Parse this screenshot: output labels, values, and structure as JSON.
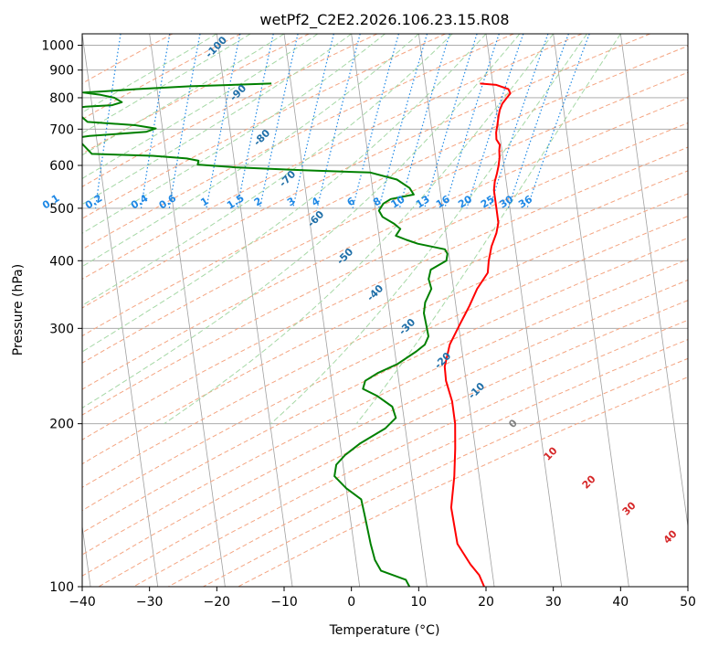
{
  "chart_data": {
    "type": "line",
    "title": "wetPf2_C2E2.2026.106.23.15.R08",
    "xlabel": "Temperature (°C)",
    "ylabel": "Pressure (hPa)",
    "xlim": [
      -40,
      50
    ],
    "ylim": [
      1050,
      100
    ],
    "y_scale": "log",
    "grid": true,
    "x_ticks": [
      -40,
      -30,
      -20,
      -10,
      0,
      10,
      20,
      30,
      40,
      50
    ],
    "x_tick_labels": [
      "−40",
      "−30",
      "−20",
      "−10",
      "0",
      "10",
      "20",
      "30",
      "40",
      "50"
    ],
    "y_ticks": [
      1000,
      900,
      800,
      700,
      600,
      500,
      400,
      300,
      200,
      100
    ],
    "y_tick_labels": [
      "1000",
      "900",
      "800",
      "700",
      "600",
      "500",
      "400",
      "300",
      "200",
      "100"
    ],
    "series": [
      {
        "role": "temperature",
        "color": "#ff0000",
        "points": [
          [
            18.1,
            850
          ],
          [
            20.5,
            845
          ],
          [
            22.2,
            830
          ],
          [
            22.4,
            815
          ],
          [
            21.8,
            800
          ],
          [
            21.0,
            780
          ],
          [
            20.5,
            760
          ],
          [
            20.2,
            740
          ],
          [
            19.8,
            710
          ],
          [
            19.5,
            690
          ],
          [
            19.4,
            670
          ],
          [
            19.8,
            655
          ],
          [
            19.6,
            640
          ],
          [
            19.5,
            620
          ],
          [
            19.2,
            600
          ],
          [
            18.8,
            580
          ],
          [
            18.3,
            560
          ],
          [
            18.0,
            540
          ],
          [
            18.0,
            520
          ],
          [
            18.0,
            500
          ],
          [
            18.0,
            470
          ],
          [
            17.5,
            450
          ],
          [
            16.5,
            425
          ],
          [
            15.8,
            400
          ],
          [
            15.4,
            380
          ],
          [
            13.5,
            355
          ],
          [
            12.0,
            330
          ],
          [
            10.2,
            305
          ],
          [
            8.3,
            280
          ],
          [
            7.1,
            255
          ],
          [
            7.0,
            240
          ],
          [
            7.5,
            220
          ],
          [
            7.5,
            200
          ],
          [
            7.0,
            180
          ],
          [
            6.3,
            160
          ],
          [
            5.2,
            140
          ],
          [
            5.4,
            120
          ],
          [
            6.9,
            110
          ],
          [
            8.0,
            105
          ],
          [
            8.5,
            100
          ]
        ]
      },
      {
        "role": "dewpoint",
        "color": "#008000",
        "points": [
          [
            -12.9,
            850
          ],
          [
            -25.0,
            840
          ],
          [
            -33.0,
            830
          ],
          [
            -38.0,
            822
          ],
          [
            -41.0,
            818
          ],
          [
            -38.5,
            810
          ],
          [
            -36.5,
            800
          ],
          [
            -35.5,
            785
          ],
          [
            -37.0,
            775
          ],
          [
            -41.0,
            770
          ],
          [
            -43.0,
            765
          ],
          [
            -41.0,
            722
          ],
          [
            -34.0,
            712
          ],
          [
            -31.0,
            702
          ],
          [
            -32.5,
            692
          ],
          [
            -41.0,
            680
          ],
          [
            -43.0,
            675
          ],
          [
            -41.0,
            630
          ],
          [
            -32.0,
            625
          ],
          [
            -27.0,
            618
          ],
          [
            -25.3,
            612
          ],
          [
            -25.5,
            602
          ],
          [
            -20.0,
            595
          ],
          [
            -10.0,
            588
          ],
          [
            0.0,
            582
          ],
          [
            3.8,
            565
          ],
          [
            5.5,
            545
          ],
          [
            6.0,
            530
          ],
          [
            2.5,
            520
          ],
          [
            1.3,
            510
          ],
          [
            0.5,
            495
          ],
          [
            0.9,
            482
          ],
          [
            2.5,
            468
          ],
          [
            3.3,
            458
          ],
          [
            2.5,
            445
          ],
          [
            4.0,
            437
          ],
          [
            5.6,
            430
          ],
          [
            9.5,
            420
          ],
          [
            9.8,
            412
          ],
          [
            9.5,
            400
          ],
          [
            7.0,
            385
          ],
          [
            6.5,
            370
          ],
          [
            6.7,
            355
          ],
          [
            5.5,
            335
          ],
          [
            5.1,
            320
          ],
          [
            5.2,
            305
          ],
          [
            5.3,
            290
          ],
          [
            4.6,
            280
          ],
          [
            3.2,
            272
          ],
          [
            0.2,
            258
          ],
          [
            -3.0,
            248
          ],
          [
            -5.0,
            240
          ],
          [
            -5.5,
            232
          ],
          [
            -3.5,
            225
          ],
          [
            -1.5,
            215
          ],
          [
            -1.2,
            205
          ],
          [
            -3.0,
            196
          ],
          [
            -7.0,
            184
          ],
          [
            -9.5,
            175
          ],
          [
            -11.0,
            168
          ],
          [
            -11.5,
            160
          ],
          [
            -10.0,
            152
          ],
          [
            -8.0,
            145
          ],
          [
            -7.8,
            135
          ],
          [
            -7.5,
            120
          ],
          [
            -7.2,
            112
          ],
          [
            -6.5,
            107
          ],
          [
            -3.0,
            103
          ],
          [
            -2.6,
            100
          ]
        ]
      }
    ],
    "dry_adiabat_labels": [
      "-100",
      "-90",
      "-80",
      "-70",
      "-60",
      "-50",
      "-40",
      "-30",
      "-20",
      "-10",
      "0",
      "10",
      "20",
      "30",
      "40"
    ],
    "mixing_ratio_labels": [
      "0.1",
      "0.2",
      "0.4",
      "0.6",
      "1",
      "1.5",
      "2",
      "3",
      "4",
      "6",
      "8",
      "10",
      "13",
      "16",
      "20",
      "25",
      "30",
      "36"
    ]
  },
  "colors": {
    "dry_adiabat": "#f4a582",
    "moist_adiabat": "#a6d8a6",
    "mixing_ratio": "#1e88e5",
    "isotherm": "#808080",
    "isobar": "#a0a0a0",
    "dry_label": "#1f6fa8",
    "warm_label": "#d62728",
    "zero_label": "#808080"
  }
}
